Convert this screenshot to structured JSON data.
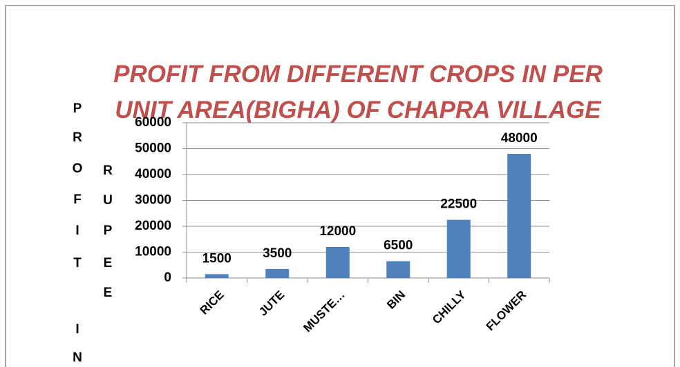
{
  "chart_data": {
    "type": "bar",
    "title": "PROFIT FROM DIFFERENT CROPS IN PER UNIT AREA(BIGHA) OF CHAPRA VILLAGE",
    "y_label": "PROFIT IN RUPEE",
    "categories": [
      "RICE",
      "JUTE",
      "MUSTE…",
      "BIN",
      "CHILLY",
      "FLOWER"
    ],
    "values": [
      1500,
      3500,
      12000,
      6500,
      22500,
      48000
    ],
    "color": "#4f81bd",
    "ylim": [
      0,
      60000
    ],
    "yticks": [
      0,
      10000,
      20000,
      30000,
      40000,
      50000,
      60000
    ],
    "grid": true
  }
}
